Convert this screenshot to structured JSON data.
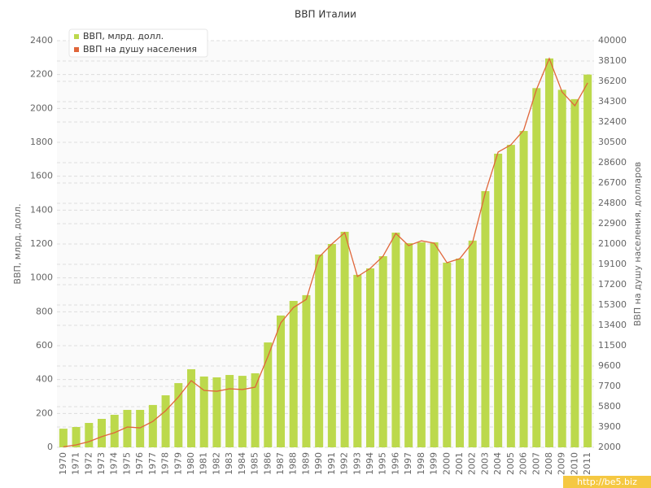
{
  "chart_data": {
    "type": "bar_line",
    "title": "ВВП Италии",
    "y_label": "ВВП, млрд. долл.",
    "y2_label": "ВВП на душу населения, долларов",
    "watermark": "http://be5.biz",
    "categories": [
      "1970",
      "1971",
      "1972",
      "1973",
      "1974",
      "1975",
      "1976",
      "1977",
      "1978",
      "1979",
      "1980",
      "1981",
      "1982",
      "1983",
      "1984",
      "1985",
      "1986",
      "1987",
      "1988",
      "1989",
      "1990",
      "1991",
      "1992",
      "1993",
      "1994",
      "1995",
      "1996",
      "1997",
      "1998",
      "1999",
      "2000",
      "2001",
      "2002",
      "2003",
      "2004",
      "2005",
      "2006",
      "2007",
      "2008",
      "2009",
      "2010",
      "2011"
    ],
    "series": [
      {
        "name": "ВВП, млрд. долл.",
        "color": "#bcd94c",
        "type": "bar",
        "values": [
          110,
          120,
          144,
          168,
          192,
          221,
          221,
          250,
          307,
          379,
          461,
          418,
          413,
          427,
          422,
          437,
          619,
          778,
          864,
          898,
          1138,
          1200,
          1272,
          1018,
          1056,
          1128,
          1267,
          1205,
          1210,
          1210,
          1090,
          1114,
          1220,
          1512,
          1733,
          1785,
          1867,
          2120,
          2295,
          2110,
          2055,
          2200
        ]
      },
      {
        "name": "ВВП на душу населения",
        "color": "#e0663a",
        "type": "line",
        "axis": "y2",
        "values": [
          2050,
          2230,
          2530,
          3000,
          3370,
          3900,
          3820,
          4430,
          5420,
          6710,
          8230,
          7320,
          7240,
          7470,
          7400,
          7620,
          10500,
          13630,
          15070,
          15830,
          19780,
          21000,
          22060,
          17960,
          18720,
          19860,
          21990,
          20850,
          21300,
          21080,
          19250,
          19630,
          21150,
          25790,
          29590,
          30270,
          31640,
          35440,
          38330,
          35210,
          33920,
          36050
        ]
      }
    ],
    "ylim": [
      0,
      2400
    ],
    "yticks": [
      0,
      200,
      400,
      600,
      800,
      1000,
      1200,
      1400,
      1600,
      1800,
      2000,
      2200,
      2400
    ],
    "y2lim": [
      2000,
      40000
    ],
    "y2ticks": [
      2000,
      3900,
      5800,
      7700,
      9600,
      11500,
      13400,
      15300,
      17200,
      19100,
      21000,
      22900,
      24800,
      26700,
      28600,
      30500,
      32400,
      34300,
      36200,
      38100,
      40000
    ],
    "grid": true,
    "legend": "top-left"
  }
}
